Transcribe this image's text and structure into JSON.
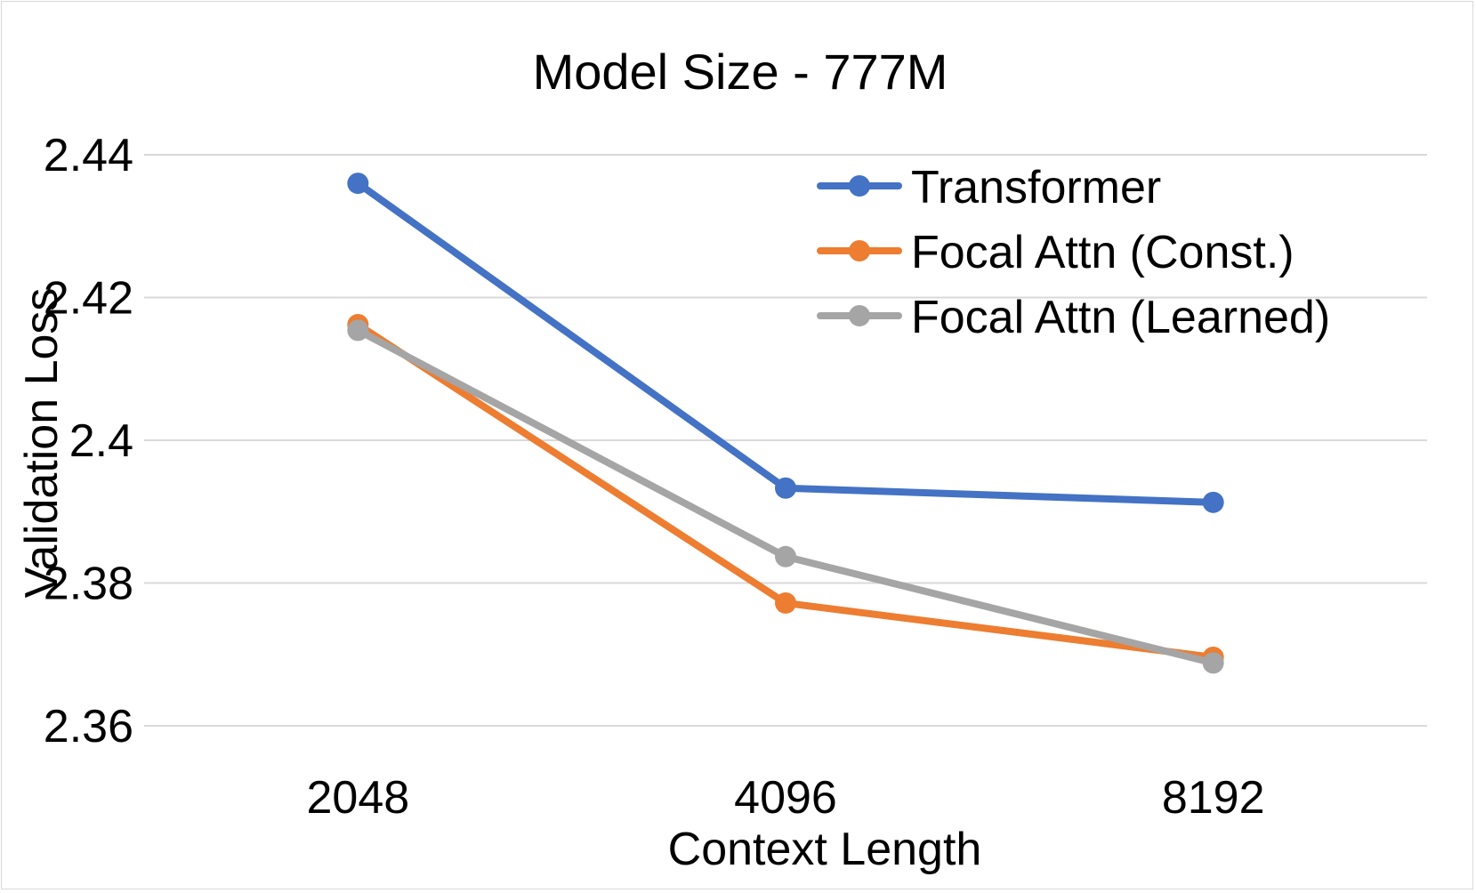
{
  "chart_data": {
    "type": "line",
    "title": "Model Size - 777M",
    "xlabel": "Context Length",
    "ylabel": "Validation Loss",
    "categories": [
      "2048",
      "4096",
      "8192"
    ],
    "ylim": [
      2.36,
      2.44
    ],
    "yticks": [
      "2.44",
      "2.42",
      "2.4",
      "2.38",
      "2.36"
    ],
    "ytick_values": [
      2.44,
      2.42,
      2.4,
      2.38,
      2.36
    ],
    "grid": true,
    "legend_position": "top-right",
    "series": [
      {
        "name": "Transformer",
        "color": "#4472C4",
        "values": [
          2.436,
          2.3933,
          2.3913
        ]
      },
      {
        "name": "Focal Attn (Const.)",
        "color": "#ED7D31",
        "values": [
          2.4162,
          2.3772,
          2.3696
        ]
      },
      {
        "name": "Focal Attn (Learned)",
        "color": "#A5A5A5",
        "values": [
          2.4154,
          2.3837,
          2.3688
        ]
      }
    ]
  }
}
